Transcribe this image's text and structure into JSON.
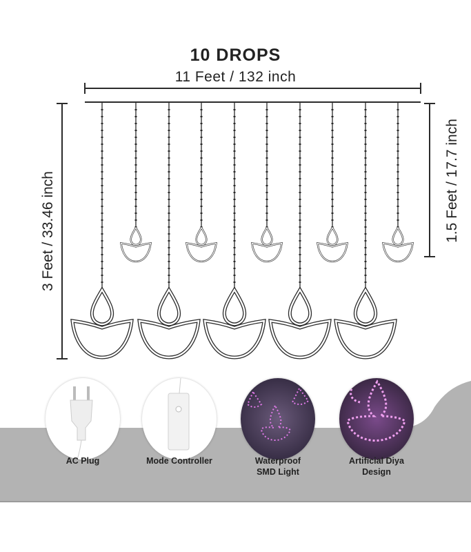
{
  "header": {
    "title": "10 DROPS",
    "width_label": "11 Feet / 132 inch"
  },
  "dimensions": {
    "left_label": "3 Feet / 33.46 inch",
    "right_label": "1.5 Feet / 17.7 inch"
  },
  "colors": {
    "band": "#b3b3b3",
    "line": "#2a2a2a"
  },
  "features": [
    {
      "label": "AC Plug",
      "icon": "ac-plug-icon"
    },
    {
      "label": "Mode Controller",
      "icon": "controller-icon"
    },
    {
      "label": "Waterproof SMD Light",
      "line1": "Waterproof",
      "line2": "SMD Light",
      "icon": "led-lights-photo"
    },
    {
      "label": "Artificial Diya Design",
      "line1": "Artificial Diya",
      "line2": "Design",
      "icon": "diya-lights-photo"
    }
  ]
}
